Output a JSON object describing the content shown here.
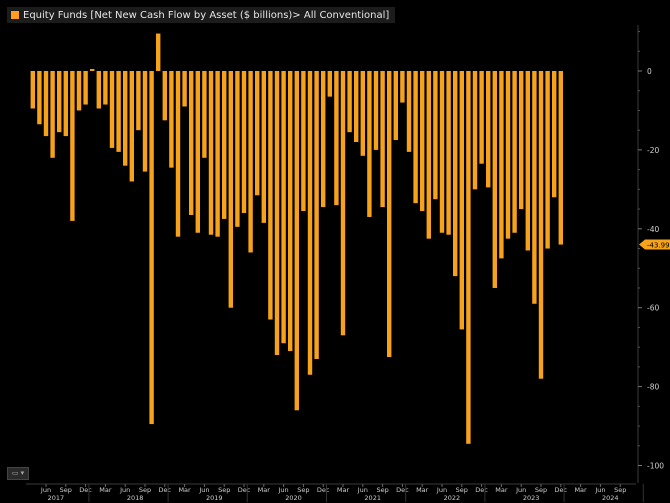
{
  "legend": {
    "label": "Equity Funds [Net New Cash Flow by Asset ($ billions)> All Conventional]",
    "swatch_color": "#ff9f1c"
  },
  "colors": {
    "bar": "#f7a21b",
    "axis_text": "#cfcfcf",
    "tick_line": "#3a3a3a",
    "last_value_bg": "#f7a21b",
    "last_value_text": "#000000"
  },
  "menu_icon": "menu-icon",
  "chart_data": {
    "type": "bar",
    "title": "Equity Funds [Net New Cash Flow by Asset ($ billions)> All Conventional]",
    "xlabel": "",
    "ylabel": "",
    "ylim": [
      -103,
      15
    ],
    "y_ticks": [
      0,
      -20,
      -40,
      -60,
      -80,
      -100
    ],
    "y_axis_position": "right",
    "grid": false,
    "legend_position": "top-left",
    "last_value_label": "-43.994",
    "start_month": "2017-04",
    "x_month_labels": [
      "Jun",
      "Sep",
      "Dec",
      "Mar",
      "Jun",
      "Sep",
      "Dec",
      "Mar",
      "Jun",
      "Sep",
      "Dec",
      "Mar",
      "Jun",
      "Sep",
      "Dec",
      "Mar",
      "Jun",
      "Sep",
      "Dec",
      "Mar",
      "Jun",
      "Sep",
      "Dec",
      "Mar",
      "Jun",
      "Sep",
      "Dec",
      "Mar",
      "Jun",
      "Sep"
    ],
    "x_year_labels": [
      "2017",
      "2018",
      "2019",
      "2020",
      "2021",
      "2022",
      "2023",
      "2024"
    ],
    "values": [
      -9.5,
      -13.5,
      -16.5,
      -22,
      -15.5,
      -16.5,
      -38,
      -10,
      -8.5,
      0.5,
      -9.5,
      -8.5,
      -19.5,
      -20.5,
      -24,
      -28,
      -15,
      -25.5,
      -89.5,
      9.5,
      -12.5,
      -24.5,
      -42,
      -9,
      -36.5,
      -41,
      -22,
      -41.5,
      -42,
      -37.5,
      -60,
      -39.5,
      -36,
      -46,
      -31.5,
      -38.5,
      -63,
      -72,
      -69,
      -71,
      -86,
      -35.5,
      -77,
      -73,
      -34.5,
      -6.5,
      -34,
      -67,
      -15.5,
      -18,
      -21.5,
      -37,
      -20,
      -34.5,
      -72.5,
      -17.5,
      -8,
      -20.5,
      -33.5,
      -35.5,
      -42.5,
      -32.5,
      -41,
      -41.5,
      -52,
      -65.5,
      -94.5,
      -30,
      -23.5,
      -29.5,
      -55,
      -47.5,
      -42.5,
      -41,
      -35,
      -45.5,
      -59,
      -78,
      -45,
      -32,
      -43.994
    ]
  }
}
